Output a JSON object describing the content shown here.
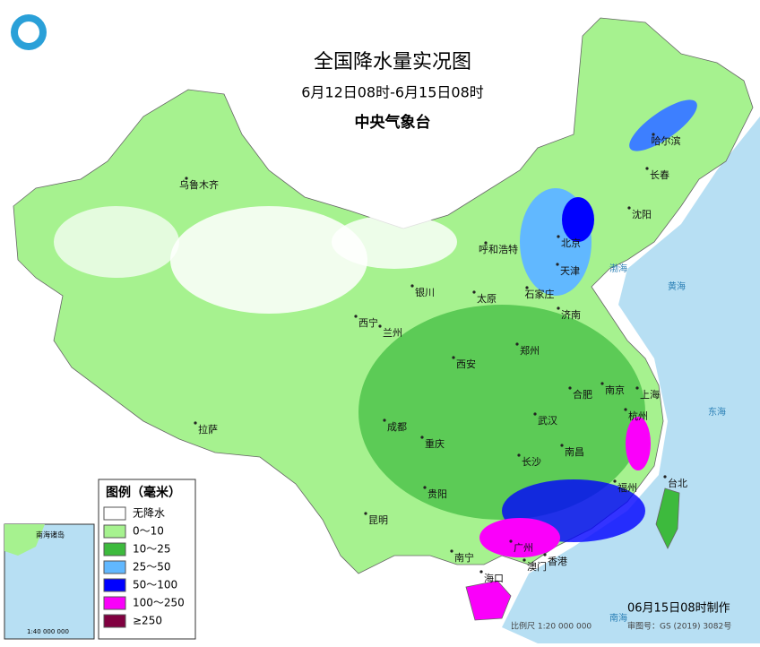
{
  "header": {
    "title": "全国降水量实况图",
    "subtitle": "6月12日08时-6月15日08时",
    "issuer": "中央气象台"
  },
  "legend": {
    "title": "图例（毫米）",
    "items": [
      {
        "label": "无降水",
        "color": "#ffffff"
      },
      {
        "label": "0～10",
        "color": "#a6f28f"
      },
      {
        "label": "10～25",
        "color": "#3dba3d"
      },
      {
        "label": "25～50",
        "color": "#61b8ff"
      },
      {
        "label": "50～100",
        "color": "#0000ff"
      },
      {
        "label": "100～250",
        "color": "#fa00fa"
      },
      {
        "label": "≥250",
        "color": "#800040"
      }
    ]
  },
  "cities": [
    "乌鲁木齐",
    "哈尔滨",
    "长春",
    "沈阳",
    "呼和浩特",
    "北京",
    "天津",
    "银川",
    "太原",
    "石家庄",
    "济南",
    "西宁",
    "兰州",
    "西安",
    "郑州",
    "合肥",
    "南京",
    "上海",
    "拉萨",
    "成都",
    "武汉",
    "杭州",
    "重庆",
    "长沙",
    "南昌",
    "福州",
    "台北",
    "贵阳",
    "昆明",
    "南宁",
    "广州",
    "澳门",
    "香港",
    "海口"
  ],
  "seas": [
    "渤海",
    "黄海",
    "东海",
    "南海"
  ],
  "inset": {
    "label": "南海诸岛",
    "scale": "1:40 000 000"
  },
  "footer": {
    "made": "06月15日08时制作",
    "scale": "比例尺 1:20 000 000",
    "approval": "审图号：GS (2019) 3082号"
  }
}
